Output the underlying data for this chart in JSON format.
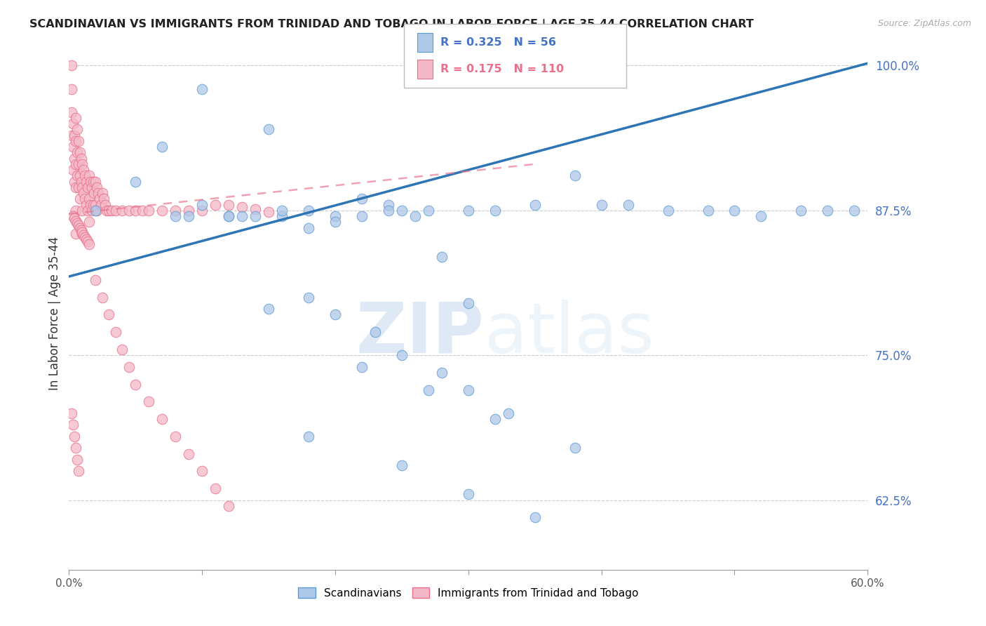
{
  "title": "SCANDINAVIAN VS IMMIGRANTS FROM TRINIDAD AND TOBAGO IN LABOR FORCE | AGE 35-44 CORRELATION CHART",
  "source": "Source: ZipAtlas.com",
  "ylabel": "In Labor Force | Age 35-44",
  "x_min": 0.0,
  "x_max": 0.6,
  "y_min": 0.565,
  "y_max": 1.008,
  "x_ticks": [
    0.0,
    0.1,
    0.2,
    0.3,
    0.4,
    0.5,
    0.6
  ],
  "y_ticks": [
    0.625,
    0.75,
    0.875,
    1.0
  ],
  "y_tick_labels": [
    "62.5%",
    "75.0%",
    "87.5%",
    "100.0%"
  ],
  "legend_blue_label": "Scandinavians",
  "legend_pink_label": "Immigrants from Trinidad and Tobago",
  "R_blue": 0.325,
  "N_blue": 56,
  "R_pink": 0.175,
  "N_pink": 110,
  "blue_color": "#aec8e8",
  "pink_color": "#f4b8c8",
  "blue_edge_color": "#5b9bd5",
  "pink_edge_color": "#e8708a",
  "blue_line_color": "#2e75b6",
  "pink_line_color": "#e8708a",
  "watermark_zip": "ZIP",
  "watermark_atlas": "atlas",
  "blue_trend_x": [
    0.0,
    0.6
  ],
  "blue_trend_y": [
    0.818,
    1.002
  ],
  "pink_trend_x": [
    0.0,
    0.35
  ],
  "pink_trend_y": [
    0.872,
    0.915
  ],
  "blue_scatter_x": [
    0.02,
    0.05,
    0.07,
    0.09,
    0.1,
    0.12,
    0.13,
    0.15,
    0.16,
    0.18,
    0.2,
    0.22,
    0.24,
    0.25,
    0.27,
    0.3,
    0.32,
    0.35,
    0.38,
    0.4,
    0.42,
    0.45,
    0.48,
    0.5,
    0.52,
    0.55,
    0.57,
    0.59,
    0.08,
    0.1,
    0.12,
    0.14,
    0.16,
    0.18,
    0.2,
    0.22,
    0.24,
    0.26,
    0.28,
    0.3,
    0.15,
    0.18,
    0.2,
    0.23,
    0.25,
    0.28,
    0.3,
    0.33,
    0.18,
    0.25,
    0.3,
    0.35,
    0.22,
    0.27,
    0.32,
    0.38
  ],
  "blue_scatter_y": [
    0.875,
    0.9,
    0.93,
    0.87,
    0.98,
    0.87,
    0.87,
    0.945,
    0.87,
    0.875,
    0.87,
    0.885,
    0.88,
    0.875,
    0.875,
    0.875,
    0.875,
    0.88,
    0.905,
    0.88,
    0.88,
    0.875,
    0.875,
    0.875,
    0.87,
    0.875,
    0.875,
    0.875,
    0.87,
    0.88,
    0.87,
    0.87,
    0.875,
    0.86,
    0.865,
    0.87,
    0.875,
    0.87,
    0.835,
    0.795,
    0.79,
    0.8,
    0.785,
    0.77,
    0.75,
    0.735,
    0.72,
    0.7,
    0.68,
    0.655,
    0.63,
    0.61,
    0.74,
    0.72,
    0.695,
    0.67
  ],
  "pink_scatter_x": [
    0.002,
    0.002,
    0.002,
    0.002,
    0.003,
    0.003,
    0.003,
    0.004,
    0.004,
    0.004,
    0.005,
    0.005,
    0.005,
    0.005,
    0.005,
    0.005,
    0.006,
    0.006,
    0.006,
    0.007,
    0.007,
    0.007,
    0.008,
    0.008,
    0.008,
    0.009,
    0.009,
    0.01,
    0.01,
    0.01,
    0.01,
    0.011,
    0.011,
    0.012,
    0.012,
    0.013,
    0.013,
    0.014,
    0.014,
    0.015,
    0.015,
    0.015,
    0.016,
    0.016,
    0.017,
    0.017,
    0.018,
    0.018,
    0.019,
    0.02,
    0.02,
    0.021,
    0.021,
    0.022,
    0.023,
    0.024,
    0.025,
    0.026,
    0.027,
    0.028,
    0.03,
    0.032,
    0.035,
    0.04,
    0.045,
    0.05,
    0.055,
    0.06,
    0.07,
    0.08,
    0.09,
    0.1,
    0.11,
    0.12,
    0.13,
    0.14,
    0.15,
    0.003,
    0.004,
    0.005,
    0.006,
    0.007,
    0.008,
    0.009,
    0.01,
    0.011,
    0.012,
    0.013,
    0.014,
    0.015,
    0.002,
    0.003,
    0.004,
    0.005,
    0.006,
    0.007,
    0.02,
    0.025,
    0.03,
    0.035,
    0.04,
    0.045,
    0.05,
    0.06,
    0.07,
    0.08,
    0.09,
    0.1,
    0.11,
    0.12
  ],
  "pink_scatter_y": [
    0.96,
    0.98,
    1.0,
    0.94,
    0.93,
    0.95,
    0.91,
    0.92,
    0.94,
    0.9,
    0.955,
    0.935,
    0.915,
    0.895,
    0.875,
    0.855,
    0.945,
    0.925,
    0.905,
    0.935,
    0.915,
    0.895,
    0.925,
    0.905,
    0.885,
    0.92,
    0.9,
    0.915,
    0.895,
    0.875,
    0.855,
    0.91,
    0.89,
    0.905,
    0.885,
    0.9,
    0.88,
    0.895,
    0.875,
    0.905,
    0.885,
    0.865,
    0.9,
    0.88,
    0.895,
    0.875,
    0.9,
    0.88,
    0.89,
    0.9,
    0.88,
    0.895,
    0.875,
    0.89,
    0.885,
    0.88,
    0.89,
    0.885,
    0.88,
    0.875,
    0.875,
    0.875,
    0.875,
    0.875,
    0.875,
    0.875,
    0.875,
    0.875,
    0.875,
    0.875,
    0.875,
    0.875,
    0.88,
    0.88,
    0.878,
    0.876,
    0.874,
    0.87,
    0.868,
    0.866,
    0.864,
    0.862,
    0.86,
    0.858,
    0.856,
    0.854,
    0.852,
    0.85,
    0.848,
    0.846,
    0.7,
    0.69,
    0.68,
    0.67,
    0.66,
    0.65,
    0.815,
    0.8,
    0.785,
    0.77,
    0.755,
    0.74,
    0.725,
    0.71,
    0.695,
    0.68,
    0.665,
    0.65,
    0.635,
    0.62
  ]
}
